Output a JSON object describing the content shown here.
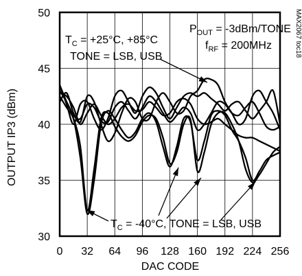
{
  "chart_data": {
    "type": "line",
    "title": "",
    "xlabel": "DAC CODE",
    "ylabel": "OUTPUT IP3 (dBm)",
    "xlim": [
      0,
      256
    ],
    "ylim": [
      30,
      50
    ],
    "x_ticks": [
      0,
      32,
      64,
      96,
      128,
      160,
      192,
      224,
      256
    ],
    "y_ticks": [
      30,
      35,
      40,
      45,
      50
    ],
    "grid": true,
    "figure_id": "MAX2067 toc18",
    "conditions": {
      "line1": {
        "main": "P",
        "sub": "OUT",
        "rest": " = -3dBm/TONE"
      },
      "line2": {
        "main": "f",
        "sub": "RF",
        "rest": " = 200MHz"
      }
    },
    "annotations": [
      {
        "id": "warm",
        "line1": {
          "main": "T",
          "sub": "C",
          "rest": " = +25°C, +85°C"
        },
        "line2": "TONE = LSB, USB"
      },
      {
        "id": "cold",
        "line1": {
          "main": "T",
          "sub": "C",
          "rest": " = -40°C, TONE = LSB, USB"
        }
      }
    ],
    "series": [
      {
        "x": [
          0,
          8,
          16,
          24,
          32,
          40,
          48,
          56,
          64,
          72,
          80,
          88,
          96,
          104,
          112,
          120,
          128,
          136,
          144,
          152,
          160,
          168,
          176,
          184,
          192,
          200,
          208,
          216,
          224,
          232,
          240,
          248,
          256
        ],
        "y": [
          43.5,
          42.0,
          40.5,
          37.0,
          32.0,
          35.0,
          40.0,
          41.2,
          40.5,
          39.5,
          38.8,
          39.3,
          40.5,
          41.0,
          40.2,
          38.0,
          36.2,
          38.0,
          40.5,
          40.2,
          36.8,
          38.5,
          40.8,
          41.2,
          40.8,
          39.5,
          38.5,
          37.0,
          35.0,
          35.8,
          36.8,
          37.2,
          37.5
        ]
      },
      {
        "x": [
          0,
          8,
          16,
          24,
          32,
          40,
          48,
          56,
          64,
          72,
          80,
          88,
          96,
          104,
          112,
          120,
          128,
          136,
          144,
          152,
          160,
          168,
          176,
          184,
          192,
          200,
          208,
          216,
          224,
          232,
          240,
          248,
          256
        ],
        "y": [
          42.5,
          41.5,
          40.5,
          38.0,
          32.3,
          36.0,
          40.5,
          41.0,
          39.8,
          38.9,
          38.5,
          39.0,
          40.2,
          40.8,
          40.5,
          38.8,
          36.5,
          37.5,
          40.0,
          40.4,
          35.8,
          37.5,
          40.0,
          41.0,
          41.0,
          40.0,
          38.5,
          36.0,
          34.8,
          35.5,
          36.5,
          37.5,
          38.0
        ]
      },
      {
        "x": [
          0,
          8,
          16,
          24,
          32,
          40,
          48,
          56,
          64,
          72,
          80,
          88,
          96,
          104,
          112,
          120,
          128,
          136,
          144,
          152,
          160,
          168,
          176,
          184,
          192,
          200,
          208,
          216,
          224,
          232,
          240,
          248,
          256
        ],
        "y": [
          42.0,
          42.8,
          41.0,
          40.2,
          42.5,
          42.0,
          40.0,
          38.5,
          39.2,
          41.0,
          42.3,
          42.0,
          40.5,
          40.5,
          42.0,
          42.8,
          42.0,
          41.0,
          41.2,
          42.5,
          43.0,
          44.0,
          44.0,
          43.5,
          42.0,
          41.0,
          40.0,
          40.5,
          42.5,
          43.0,
          42.0,
          41.0,
          39.5
        ]
      },
      {
        "x": [
          0,
          8,
          16,
          24,
          32,
          40,
          48,
          56,
          64,
          72,
          80,
          88,
          96,
          104,
          112,
          120,
          128,
          136,
          144,
          152,
          160,
          168,
          176,
          184,
          192,
          200,
          208,
          216,
          224,
          232,
          240,
          248,
          256
        ],
        "y": [
          43.5,
          41.8,
          40.0,
          41.8,
          42.0,
          40.5,
          39.5,
          40.5,
          42.5,
          43.0,
          42.0,
          41.0,
          42.5,
          43.3,
          42.8,
          41.5,
          40.5,
          41.5,
          42.5,
          42.8,
          42.5,
          42.8,
          42.3,
          41.8,
          41.2,
          41.8,
          42.0,
          41.2,
          40.5,
          41.2,
          42.0,
          43.0,
          40.0
        ]
      },
      {
        "x": [
          0,
          8,
          16,
          24,
          32,
          40,
          48,
          56,
          64,
          72,
          80,
          88,
          96,
          104,
          112,
          120,
          128,
          136,
          144,
          152,
          160,
          168,
          176,
          184,
          192,
          200,
          208,
          216,
          224,
          232,
          240,
          248,
          256
        ],
        "y": [
          42.8,
          42.5,
          41.5,
          40.0,
          41.0,
          41.8,
          40.8,
          40.0,
          40.5,
          41.5,
          41.8,
          41.2,
          41.3,
          42.0,
          41.5,
          40.8,
          41.0,
          42.0,
          42.3,
          41.8,
          40.5,
          40.0,
          40.2,
          40.5,
          40.0,
          39.5,
          39.0,
          38.8,
          38.8,
          38.5,
          38.2,
          37.9,
          37.6
        ]
      },
      {
        "x": [
          0,
          8,
          16,
          24,
          32,
          40,
          48,
          56,
          64,
          72,
          80,
          88,
          96,
          104,
          112,
          120,
          128,
          136,
          144,
          152,
          160,
          168,
          176,
          184,
          192,
          200,
          208,
          216,
          224,
          232,
          240,
          248,
          256
        ],
        "y": [
          43.0,
          42.0,
          40.8,
          40.5,
          41.8,
          41.5,
          40.3,
          40.2,
          41.5,
          42.0,
          41.2,
          40.5,
          41.5,
          42.5,
          42.0,
          41.0,
          40.2,
          40.8,
          41.5,
          41.0,
          39.5,
          40.0,
          41.0,
          42.0,
          41.8,
          41.0,
          40.8,
          41.5,
          42.0,
          41.0,
          39.8,
          39.5,
          39.8
        ]
      }
    ]
  }
}
